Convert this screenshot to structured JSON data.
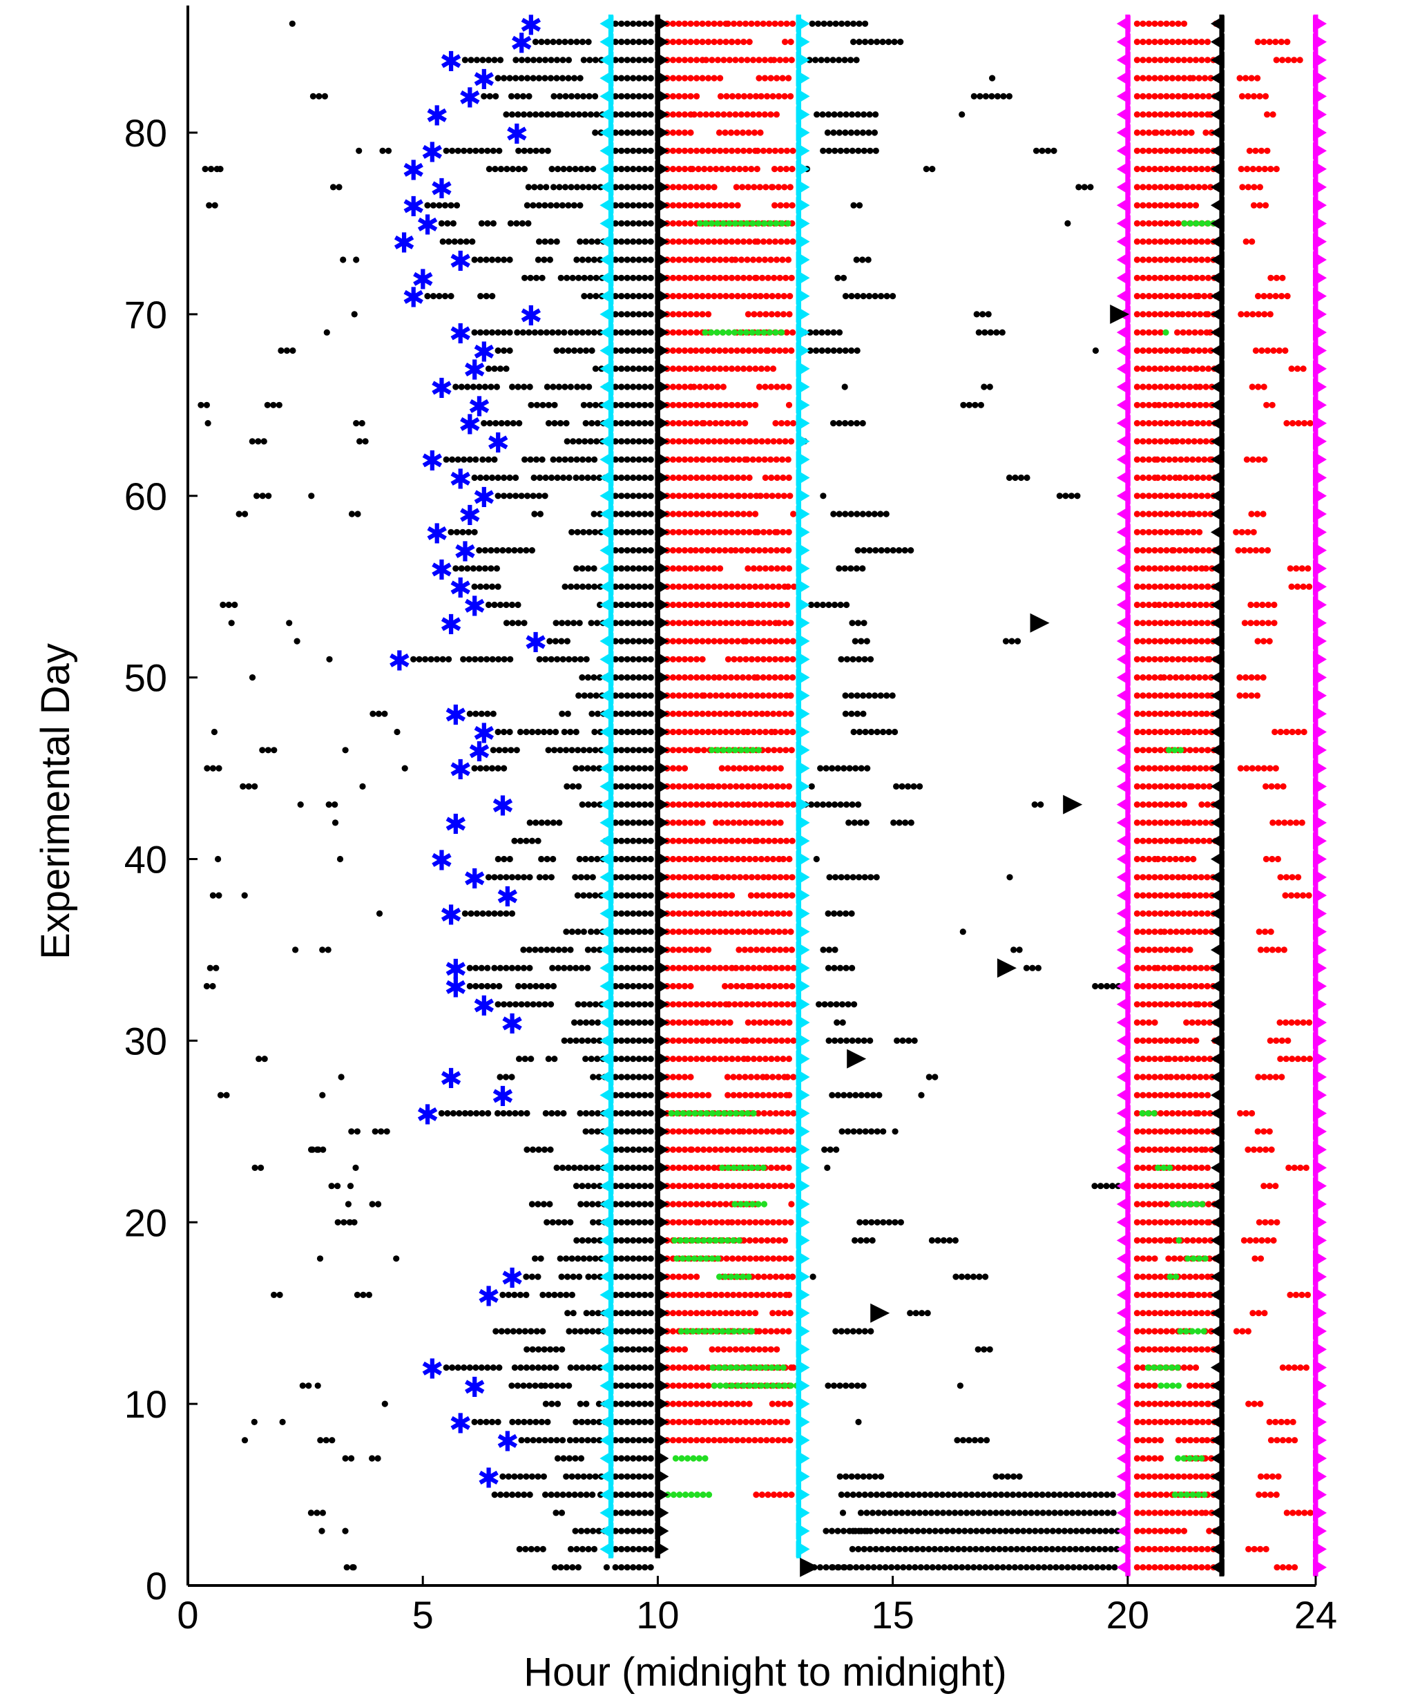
{
  "chart_data": {
    "type": "scatter",
    "title": "",
    "xlabel": "Hour (midnight to midnight)",
    "ylabel": "Experimental Day",
    "xlim": [
      0,
      24
    ],
    "ylim": [
      0,
      87
    ],
    "xticks": [
      0,
      5,
      10,
      15,
      20,
      24
    ],
    "yticks": [
      0,
      10,
      20,
      30,
      40,
      50,
      60,
      70,
      80
    ],
    "colors": {
      "activity": "#000000",
      "red": "#ff0000",
      "green": "#22dd22",
      "asterisk": "#0000ff",
      "cyan": "#00e5ff",
      "magenta": "#ff00ff",
      "marker": "#000000"
    },
    "vertical_bands": [
      {
        "name": "cyan-left",
        "x": 9.0,
        "color": "#00e5ff",
        "direction": "left",
        "day_from": 2,
        "day_to": 86
      },
      {
        "name": "black-10",
        "x": 10.0,
        "color": "#000000",
        "direction": "right",
        "day_from": 2,
        "day_to": 86
      },
      {
        "name": "cyan-right",
        "x": 13.0,
        "color": "#00e5ff",
        "direction": "right",
        "day_from": 2,
        "day_to": 86
      },
      {
        "name": "magenta-left",
        "x": 20.0,
        "color": "#ff00ff",
        "direction": "left",
        "day_from": 1,
        "day_to": 86
      },
      {
        "name": "black-22",
        "x": 22.0,
        "color": "#000000",
        "direction": "left",
        "day_from": 1,
        "day_to": 86
      },
      {
        "name": "magenta-right",
        "x": 24.0,
        "color": "#ff00ff",
        "direction": "right",
        "day_from": 1,
        "day_to": 86
      }
    ],
    "sleep_blocks": [
      {
        "start": 10.2,
        "end": 12.9,
        "days": [
          [
            10,
            86
          ]
        ],
        "color": "#ff0000"
      },
      {
        "start": 20.2,
        "end": 21.9,
        "days": [
          [
            1,
            86
          ]
        ],
        "color": "#ff0000"
      }
    ],
    "green_days": [
      5,
      7,
      11,
      12,
      14,
      17,
      18,
      19,
      21,
      23,
      26,
      46,
      69,
      75
    ],
    "onset_asterisks": [
      {
        "day": 86,
        "hour": 7.3
      },
      {
        "day": 85,
        "hour": 7.1
      },
      {
        "day": 84,
        "hour": 5.6
      },
      {
        "day": 83,
        "hour": 6.3
      },
      {
        "day": 82,
        "hour": 6.0
      },
      {
        "day": 81,
        "hour": 5.3
      },
      {
        "day": 80,
        "hour": 7.0
      },
      {
        "day": 79,
        "hour": 5.2
      },
      {
        "day": 78,
        "hour": 4.8
      },
      {
        "day": 77,
        "hour": 5.4
      },
      {
        "day": 76,
        "hour": 4.8
      },
      {
        "day": 75,
        "hour": 5.1
      },
      {
        "day": 74,
        "hour": 4.6
      },
      {
        "day": 73,
        "hour": 5.8
      },
      {
        "day": 72,
        "hour": 5.0
      },
      {
        "day": 71,
        "hour": 4.8
      },
      {
        "day": 70,
        "hour": 7.3
      },
      {
        "day": 69,
        "hour": 5.8
      },
      {
        "day": 68,
        "hour": 6.3
      },
      {
        "day": 67,
        "hour": 6.1
      },
      {
        "day": 66,
        "hour": 5.4
      },
      {
        "day": 65,
        "hour": 6.2
      },
      {
        "day": 64,
        "hour": 6.0
      },
      {
        "day": 63,
        "hour": 6.6
      },
      {
        "day": 62,
        "hour": 5.2
      },
      {
        "day": 61,
        "hour": 5.8
      },
      {
        "day": 60,
        "hour": 6.3
      },
      {
        "day": 59,
        "hour": 6.0
      },
      {
        "day": 58,
        "hour": 5.3
      },
      {
        "day": 57,
        "hour": 5.9
      },
      {
        "day": 56,
        "hour": 5.4
      },
      {
        "day": 55,
        "hour": 5.8
      },
      {
        "day": 54,
        "hour": 6.1
      },
      {
        "day": 53,
        "hour": 5.6
      },
      {
        "day": 52,
        "hour": 7.4
      },
      {
        "day": 51,
        "hour": 4.5
      },
      {
        "day": 48,
        "hour": 5.7
      },
      {
        "day": 47,
        "hour": 6.3
      },
      {
        "day": 46,
        "hour": 6.2
      },
      {
        "day": 45,
        "hour": 5.8
      },
      {
        "day": 43,
        "hour": 6.7
      },
      {
        "day": 42,
        "hour": 5.7
      },
      {
        "day": 40,
        "hour": 5.4
      },
      {
        "day": 39,
        "hour": 6.1
      },
      {
        "day": 38,
        "hour": 6.8
      },
      {
        "day": 37,
        "hour": 5.6
      },
      {
        "day": 34,
        "hour": 5.7
      },
      {
        "day": 33,
        "hour": 5.7
      },
      {
        "day": 32,
        "hour": 6.3
      },
      {
        "day": 31,
        "hour": 6.9
      },
      {
        "day": 28,
        "hour": 5.6
      },
      {
        "day": 27,
        "hour": 6.7
      },
      {
        "day": 26,
        "hour": 5.1
      },
      {
        "day": 17,
        "hour": 6.9
      },
      {
        "day": 16,
        "hour": 6.4
      },
      {
        "day": 12,
        "hour": 5.2
      },
      {
        "day": 11,
        "hour": 6.1
      },
      {
        "day": 9,
        "hour": 5.8
      },
      {
        "day": 8,
        "hour": 6.8
      },
      {
        "day": 6,
        "hour": 6.4
      }
    ],
    "event_markers": [
      {
        "day": 70,
        "hour": 19.8
      },
      {
        "day": 53,
        "hour": 18.1
      },
      {
        "day": 43,
        "hour": 18.8
      },
      {
        "day": 34,
        "hour": 17.4
      },
      {
        "day": 29,
        "hour": 14.2
      },
      {
        "day": 15,
        "hour": 14.7
      },
      {
        "day": 1,
        "hour": 13.2
      }
    ]
  }
}
